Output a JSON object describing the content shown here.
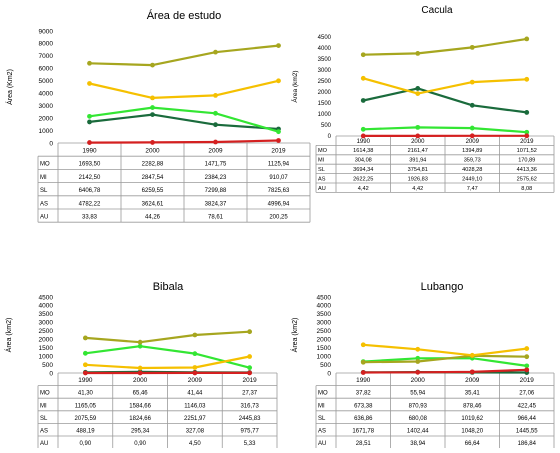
{
  "chart_data": [
    {
      "type": "line",
      "title": "Área de estudo",
      "ylabel": "Área (Km2)",
      "xlabel": "",
      "categories": [
        "1990",
        "2000",
        "2009",
        "2019"
      ],
      "ylim": [
        0,
        9000
      ],
      "yticks": [
        0,
        1000,
        2000,
        3000,
        4000,
        5000,
        6000,
        7000,
        8000,
        9000
      ],
      "grid": false,
      "legend": "data table below chart",
      "series": [
        {
          "name": "MO",
          "color": "#1a6b3c",
          "values": [
            1693.5,
            2282.88,
            1471.75,
            1125.94
          ],
          "labels": [
            "1693,50",
            "2282,88",
            "1471,75",
            "1125,94"
          ]
        },
        {
          "name": "MI",
          "color": "#33e633",
          "values": [
            2142.5,
            2847.54,
            2384.23,
            910.07
          ],
          "labels": [
            "2142,50",
            "2847,54",
            "2384,23",
            "910,07"
          ]
        },
        {
          "name": "SL",
          "color": "#a6a61f",
          "values": [
            6406.78,
            6259.55,
            7299.88,
            7825.63
          ],
          "labels": [
            "6406,78",
            "6259,55",
            "7299,88",
            "7825,63"
          ]
        },
        {
          "name": "AS",
          "color": "#f5c000",
          "values": [
            4782.22,
            3624.61,
            3824.37,
            4996.94
          ],
          "labels": [
            "4782,22",
            "3624,61",
            "3824,37",
            "4996,94"
          ]
        },
        {
          "name": "AU",
          "color": "#d42020",
          "values": [
            33.83,
            44.26,
            78.61,
            200.25
          ],
          "labels": [
            "33,83",
            "44,26",
            "78,61",
            "200,25"
          ]
        }
      ]
    },
    {
      "type": "line",
      "title": "Cacula",
      "ylabel": "Área (km2)",
      "xlabel": "",
      "categories": [
        "1990",
        "2000",
        "2009",
        "2019"
      ],
      "ylim": [
        0,
        4500
      ],
      "yticks": [
        0,
        500,
        1000,
        1500,
        2000,
        2500,
        3000,
        3500,
        4000,
        4500
      ],
      "grid": false,
      "legend": "data table below chart",
      "series": [
        {
          "name": "MO",
          "color": "#1a6b3c",
          "values": [
            1614.38,
            2161.47,
            1394.89,
            1071.52
          ],
          "labels": [
            "1614,38",
            "2161,47",
            "1394,89",
            "1071,52"
          ]
        },
        {
          "name": "MI",
          "color": "#33e633",
          "values": [
            304.08,
            391.94,
            359.73,
            170.89
          ],
          "labels": [
            "304,08",
            "391,94",
            "359,73",
            "170,89"
          ]
        },
        {
          "name": "SL",
          "color": "#a6a61f",
          "values": [
            3694.34,
            3754.81,
            4028.28,
            4413.36
          ],
          "labels": [
            "3694,34",
            "3754,81",
            "4028,28",
            "4413,36"
          ]
        },
        {
          "name": "AS",
          "color": "#f5c000",
          "values": [
            2622.25,
            1926.83,
            2449.1,
            2575.62
          ],
          "labels": [
            "2622,25",
            "1926,83",
            "2449,10",
            "2575,62"
          ]
        },
        {
          "name": "AU",
          "color": "#d42020",
          "values": [
            4.42,
            4.42,
            7.47,
            8.08
          ],
          "labels": [
            "4,42",
            "4,42",
            "7,47",
            "8,08"
          ]
        }
      ]
    },
    {
      "type": "line",
      "title": "Bibala",
      "ylabel": "Área (km2)",
      "xlabel": "",
      "categories": [
        "1990",
        "2000",
        "2009",
        "2019"
      ],
      "ylim": [
        0,
        4500
      ],
      "yticks": [
        0,
        500,
        1000,
        1500,
        2000,
        2500,
        3000,
        3500,
        4000,
        4500
      ],
      "grid": false,
      "legend": "data table below chart",
      "series": [
        {
          "name": "MO",
          "color": "#1a6b3c",
          "values": [
            41.3,
            65.46,
            41.44,
            27.37
          ],
          "labels": [
            "41,30",
            "65,46",
            "41,44",
            "27,37"
          ]
        },
        {
          "name": "MI",
          "color": "#33e633",
          "values": [
            1165.05,
            1584.66,
            1146.03,
            316.73
          ],
          "labels": [
            "1165,05",
            "1584,66",
            "1146,03",
            "316,73"
          ]
        },
        {
          "name": "SL",
          "color": "#a6a61f",
          "values": [
            2075.59,
            1824.66,
            2251.97,
            2445.83
          ],
          "labels": [
            "2075,59",
            "1824,66",
            "2251,97",
            "2445,83"
          ]
        },
        {
          "name": "AS",
          "color": "#f5c000",
          "values": [
            488.19,
            295.34,
            327.08,
            975.77
          ],
          "labels": [
            "488,19",
            "295,34",
            "327,08",
            "975,77"
          ]
        },
        {
          "name": "AU",
          "color": "#d42020",
          "values": [
            0.9,
            0.9,
            4.5,
            5.33
          ],
          "labels": [
            "0,90",
            "0,90",
            "4,50",
            "5,33"
          ]
        }
      ]
    },
    {
      "type": "line",
      "title": "Lubango",
      "ylabel": "Área (km2)",
      "xlabel": "",
      "categories": [
        "1990",
        "2000",
        "2009",
        "2019"
      ],
      "ylim": [
        0,
        4500
      ],
      "yticks": [
        0,
        500,
        1000,
        1500,
        2000,
        2500,
        3000,
        3500,
        4000,
        4500
      ],
      "grid": false,
      "legend": "data table below chart",
      "series": [
        {
          "name": "MO",
          "color": "#1a6b3c",
          "values": [
            37.82,
            55.94,
            35.41,
            27.06
          ],
          "labels": [
            "37,82",
            "55,94",
            "35,41",
            "27,06"
          ]
        },
        {
          "name": "MI",
          "color": "#33e633",
          "values": [
            673.38,
            870.93,
            878.46,
            422.45
          ],
          "labels": [
            "673,38",
            "870,93",
            "878,46",
            "422,45"
          ]
        },
        {
          "name": "SL",
          "color": "#a6a61f",
          "values": [
            636.86,
            680.08,
            1019.62,
            966.44
          ],
          "labels": [
            "636,86",
            "680,08",
            "1019,62",
            "966,44"
          ]
        },
        {
          "name": "AS",
          "color": "#f5c000",
          "values": [
            1671.78,
            1402.44,
            1048.2,
            1445.55
          ],
          "labels": [
            "1671,78",
            "1402,44",
            "1048,20",
            "1445,55"
          ]
        },
        {
          "name": "AU",
          "color": "#d42020",
          "values": [
            28.51,
            38.94,
            66.64,
            186.84
          ],
          "labels": [
            "28,51",
            "38,94",
            "66,64",
            "186,84"
          ]
        }
      ]
    }
  ]
}
